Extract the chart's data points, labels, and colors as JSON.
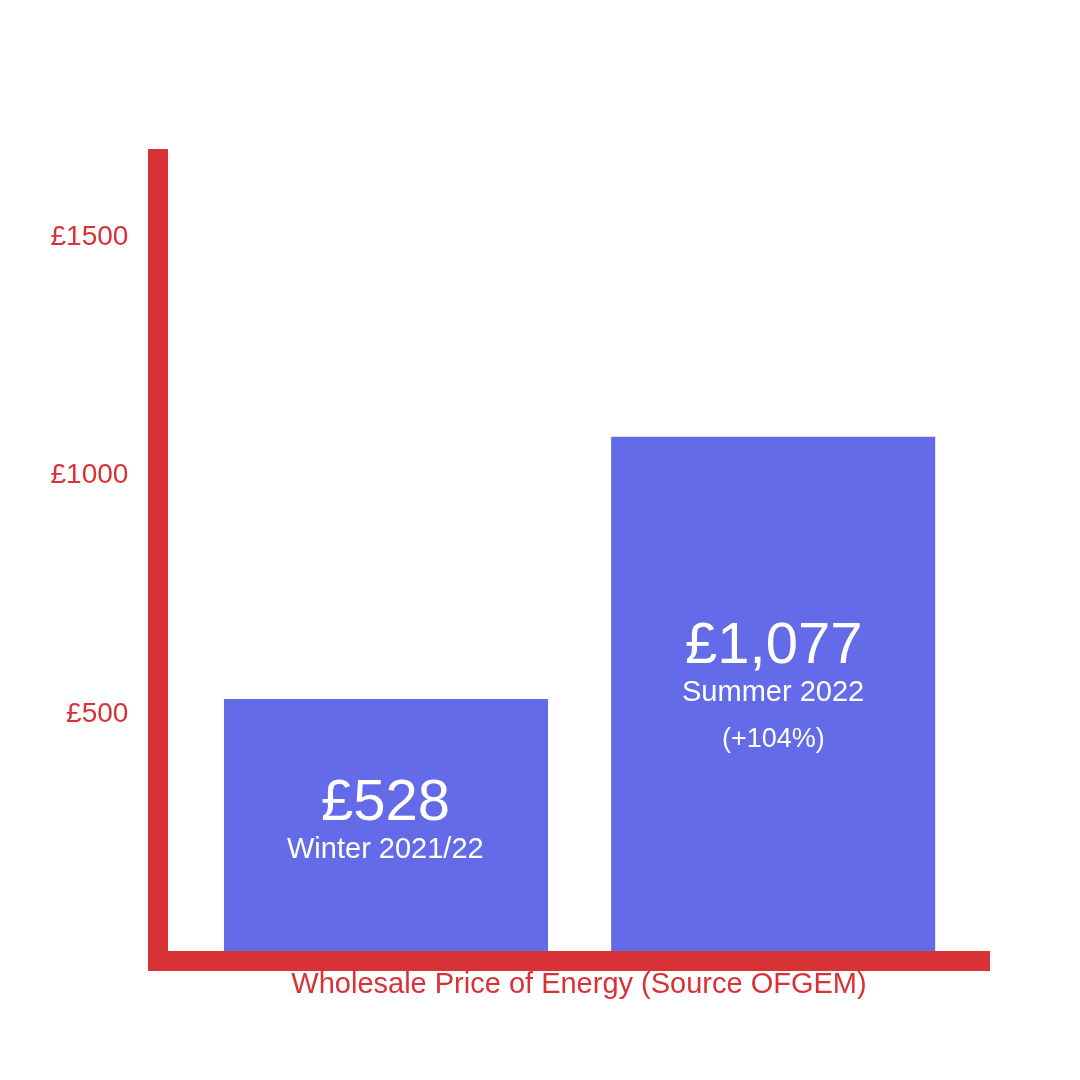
{
  "chart_data": {
    "type": "bar",
    "xlabel": "Wholesale Price of Energy (Source OFGEM)",
    "categories": [
      "Winter 2021/22",
      "Summer 2022"
    ],
    "values": [
      528,
      1077
    ],
    "value_labels": [
      "£528",
      "£1,077"
    ],
    "color": "#636be8",
    "ylim": [
      0,
      1680
    ],
    "yticks": [
      {
        "value": 500,
        "label": "£500"
      },
      {
        "value": 1000,
        "label": "£1000"
      },
      {
        "value": 1500,
        "label": "£1500"
      }
    ],
    "tick_labels": "y",
    "grid": false,
    "annotations": [
      "(+104%)"
    ]
  }
}
